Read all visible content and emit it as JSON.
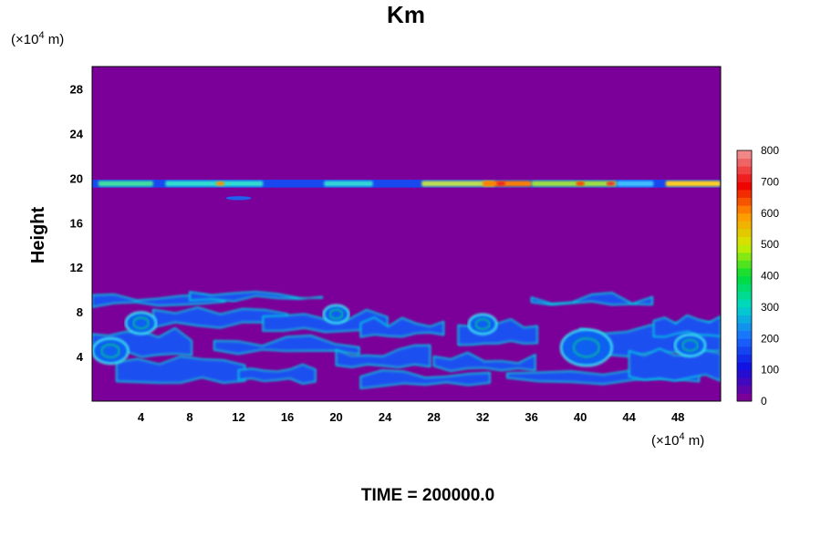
{
  "chart_data": {
    "type": "heatmap",
    "title": "Km",
    "ylabel": "Height",
    "x_unit_prefix": "(×10",
    "x_unit_exp": "4",
    "x_unit_suffix": " m)",
    "y_unit_prefix": "(×10",
    "y_unit_exp": "4",
    "y_unit_suffix": " m)",
    "xlim": [
      0,
      51.5
    ],
    "ylim": [
      0,
      30
    ],
    "x_ticks": [
      4,
      8,
      12,
      16,
      20,
      24,
      28,
      32,
      36,
      40,
      44,
      48
    ],
    "y_ticks": [
      4,
      8,
      12,
      16,
      20,
      24,
      28
    ],
    "colorbar": {
      "range": [
        0,
        800
      ],
      "ticks": [
        0,
        100,
        200,
        300,
        400,
        500,
        600,
        700,
        800
      ],
      "colors": [
        "#7a0099",
        "#1010e0",
        "#1a70ff",
        "#00d8c8",
        "#00dd33",
        "#cfee00",
        "#ff9900",
        "#ee0000",
        "#f08888"
      ]
    },
    "background_value": 0,
    "features": [
      {
        "name": "upper-layer",
        "x_range": [
          0,
          51.5
        ],
        "y_center": 19.5,
        "typical": 200,
        "peak": 750
      },
      {
        "name": "lower-turbulent-region",
        "x_range": [
          0,
          51.5
        ],
        "y_range": [
          1,
          10
        ],
        "typical": 220,
        "peak": 330
      }
    ],
    "footer_prefix": "TIME = ",
    "time": "200000.0"
  }
}
